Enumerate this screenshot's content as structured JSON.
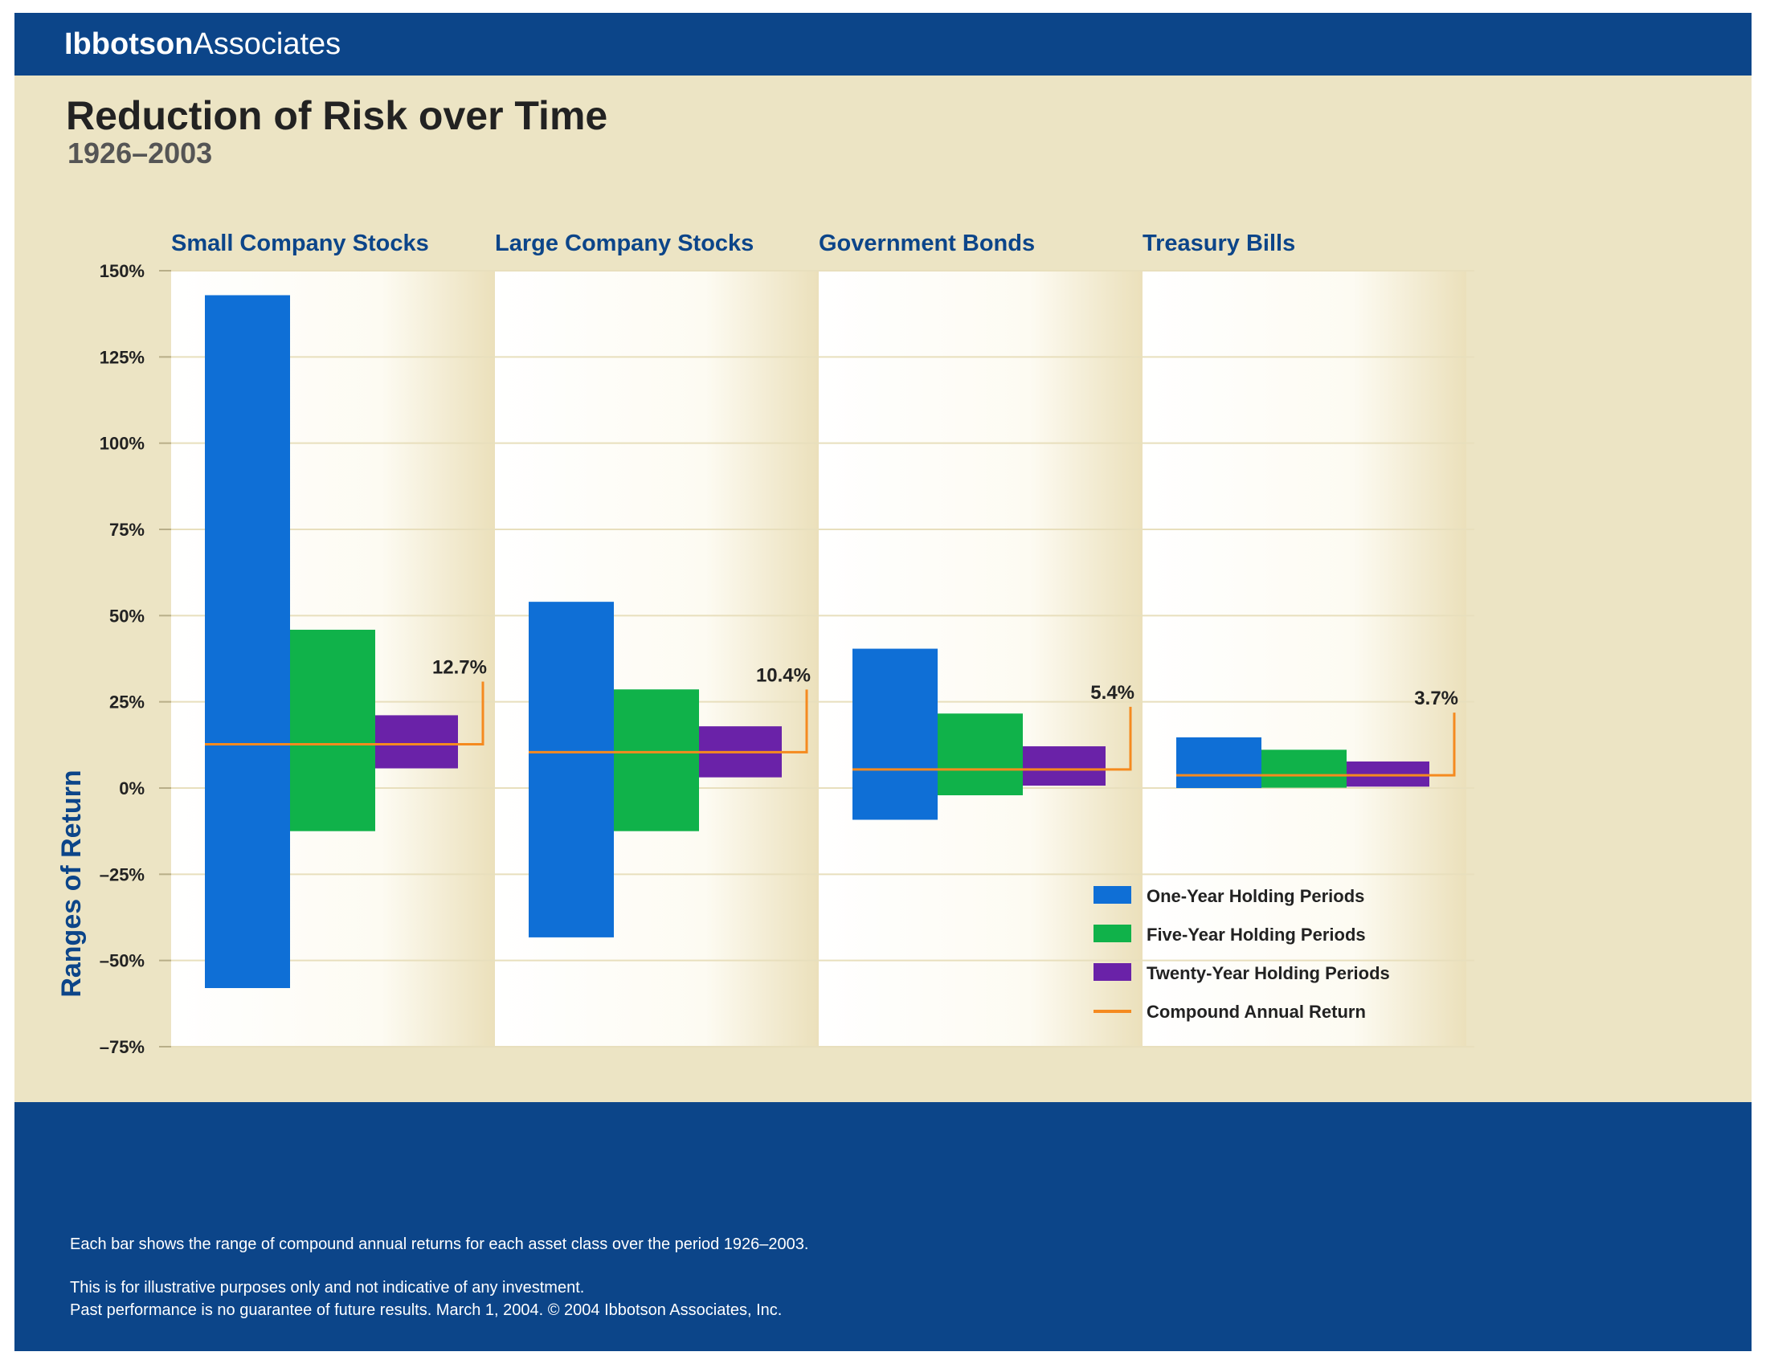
{
  "header": {
    "brand_bold": "Ibbotson",
    "brand_light": "Associates",
    "title": "Reduction of Risk over Time",
    "subtitle": "1926–2003"
  },
  "footer": {
    "line1": "Each bar shows the range of compound annual returns for each asset class over the period 1926–2003.",
    "line2": "This is for illustrative purposes only and not indicative of any investment.",
    "line3": "Past performance is no guarantee of future results.  March 1, 2004. © 2004 Ibbotson Associates, Inc."
  },
  "colors": {
    "one_year": "#0f6fd6",
    "five_year": "#10b24a",
    "twenty_year": "#6a22a8",
    "compound": "#f58a1f",
    "panel_title": "#0c4589",
    "band": "#0c4589"
  },
  "chart_data": {
    "type": "bar",
    "subtype": "floating-range",
    "ylabel": "Ranges of Return",
    "ylim": [
      -75,
      150
    ],
    "yticks": [
      150,
      125,
      100,
      75,
      50,
      25,
      0,
      -25,
      -50,
      -75
    ],
    "ytick_labels": [
      "150%",
      "125%",
      "100%",
      "75%",
      "50%",
      "25%",
      "0%",
      "–25%",
      "–50%",
      "–75%"
    ],
    "grid": true,
    "legend_position": "bottom-right",
    "series_labels": [
      "One-Year Holding Periods",
      "Five-Year Holding Periods",
      "Twenty-Year Holding Periods",
      "Compound Annual Return"
    ],
    "panels": [
      {
        "name": "Small Company Stocks",
        "ranges": [
          [
            -58.0,
            142.9
          ],
          [
            -12.5,
            45.9
          ],
          [
            5.7,
            21.1
          ]
        ],
        "compound": 12.7,
        "compound_label": "12.7%"
      },
      {
        "name": "Large Company Stocks",
        "ranges": [
          [
            -43.3,
            54.0
          ],
          [
            -12.5,
            28.6
          ],
          [
            3.1,
            17.9
          ]
        ],
        "compound": 10.4,
        "compound_label": "10.4%"
      },
      {
        "name": "Government Bonds",
        "ranges": [
          [
            -9.2,
            40.4
          ],
          [
            -2.1,
            21.6
          ],
          [
            0.7,
            12.1
          ]
        ],
        "compound": 5.4,
        "compound_label": "5.4%"
      },
      {
        "name": "Treasury Bills",
        "ranges": [
          [
            0.0,
            14.7
          ],
          [
            0.1,
            11.1
          ],
          [
            0.4,
            7.7
          ]
        ],
        "compound": 3.7,
        "compound_label": "3.7%"
      }
    ]
  }
}
